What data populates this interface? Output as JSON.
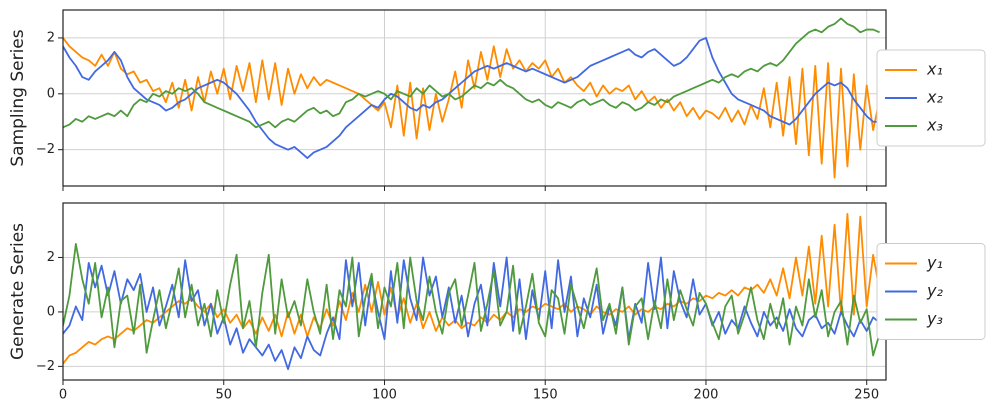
{
  "chart_data": [
    {
      "type": "line",
      "ylabel": "Sampling Series",
      "x": [
        0,
        2,
        4,
        6,
        8,
        10,
        12,
        14,
        16,
        18,
        20,
        22,
        24,
        26,
        28,
        30,
        32,
        34,
        36,
        38,
        40,
        42,
        44,
        46,
        48,
        50,
        52,
        54,
        56,
        58,
        60,
        62,
        64,
        66,
        68,
        70,
        72,
        74,
        76,
        78,
        80,
        82,
        84,
        86,
        88,
        90,
        92,
        94,
        96,
        98,
        100,
        102,
        104,
        106,
        108,
        110,
        112,
        114,
        116,
        118,
        120,
        122,
        124,
        126,
        128,
        130,
        132,
        134,
        136,
        138,
        140,
        142,
        144,
        146,
        148,
        150,
        152,
        154,
        156,
        158,
        160,
        162,
        164,
        166,
        168,
        170,
        172,
        174,
        176,
        178,
        180,
        182,
        184,
        186,
        188,
        190,
        192,
        194,
        196,
        198,
        200,
        202,
        204,
        206,
        208,
        210,
        212,
        214,
        216,
        218,
        220,
        222,
        224,
        226,
        228,
        230,
        232,
        234,
        236,
        238,
        240,
        242,
        244,
        246,
        248,
        250,
        252,
        254
      ],
      "xlim": [
        0,
        256
      ],
      "xticks": [
        0,
        50,
        100,
        150,
        200,
        250
      ],
      "xtick_labels": false,
      "ylim": [
        -3.3,
        3.0
      ],
      "yticks": [
        {
          "value": -2,
          "label": "−2"
        },
        0,
        2
      ],
      "grid": true,
      "legend": "right",
      "series": [
        {
          "name": "x₁",
          "color": "#ff8c00",
          "values": [
            2.0,
            1.7,
            1.5,
            1.3,
            1.2,
            1.0,
            1.4,
            1.0,
            1.5,
            0.9,
            0.7,
            0.8,
            0.4,
            0.5,
            0.1,
            0.2,
            -0.3,
            0.4,
            -0.5,
            0.5,
            -0.6,
            0.6,
            -0.3,
            0.8,
            0.0,
            0.9,
            -0.2,
            1.0,
            0.1,
            1.1,
            -0.3,
            1.2,
            -0.2,
            1.1,
            -0.4,
            0.9,
            0.0,
            0.7,
            0.2,
            0.6,
            0.3,
            0.5,
            0.4,
            0.3,
            0.2,
            0.1,
            0.0,
            -0.2,
            -0.4,
            -0.6,
            -0.3,
            -1.2,
            0.3,
            -1.5,
            0.4,
            -1.6,
            0.2,
            -1.3,
            0.0,
            -1.0,
            -0.2,
            0.8,
            -0.5,
            1.2,
            0.2,
            1.5,
            0.5,
            1.7,
            0.6,
            1.6,
            0.9,
            1.2,
            0.8,
            1.1,
            0.9,
            1.2,
            0.6,
            0.9,
            0.4,
            0.6,
            0.3,
            0.1,
            0.4,
            -0.1,
            0.3,
            0.0,
            0.2,
            0.1,
            0.3,
            -0.2,
            0.1,
            -0.3,
            -0.1,
            -0.5,
            -0.2,
            -0.6,
            -0.3,
            -0.8,
            -0.5,
            -0.9,
            -0.6,
            -0.7,
            -0.9,
            -0.5,
            -1.0,
            -0.6,
            -1.1,
            -0.4,
            -0.9,
            0.2,
            -1.2,
            0.4,
            -1.5,
            0.6,
            -1.8,
            0.9,
            -2.2,
            1.0,
            -2.5,
            1.1,
            -3.0,
            0.9,
            -2.6,
            0.7,
            -2.0,
            0.3,
            -1.3,
            -0.2
          ]
        },
        {
          "name": "x₂",
          "color": "#4169e1",
          "values": [
            1.7,
            1.3,
            1.0,
            0.6,
            0.5,
            0.8,
            1.0,
            1.2,
            1.5,
            1.2,
            0.6,
            0.2,
            0.0,
            -0.2,
            -0.3,
            -0.4,
            -0.6,
            -0.5,
            -0.3,
            -0.2,
            0.0,
            0.2,
            0.3,
            0.4,
            0.5,
            0.4,
            0.2,
            0.0,
            -0.3,
            -0.6,
            -1.0,
            -1.3,
            -1.6,
            -1.8,
            -1.9,
            -2.0,
            -1.9,
            -2.1,
            -2.3,
            -2.1,
            -2.0,
            -1.9,
            -1.7,
            -1.5,
            -1.2,
            -1.0,
            -0.8,
            -0.6,
            -0.4,
            -0.5,
            -0.2,
            0.0,
            -0.1,
            -0.3,
            -0.5,
            -0.6,
            -0.4,
            -0.5,
            -0.3,
            -0.2,
            0.0,
            0.2,
            0.4,
            0.6,
            0.8,
            0.9,
            1.0,
            0.9,
            1.0,
            1.1,
            1.0,
            0.9,
            0.8,
            0.9,
            0.8,
            0.7,
            0.6,
            0.5,
            0.4,
            0.5,
            0.6,
            0.8,
            1.0,
            1.1,
            1.2,
            1.3,
            1.4,
            1.5,
            1.6,
            1.4,
            1.3,
            1.5,
            1.6,
            1.4,
            1.2,
            1.0,
            1.1,
            1.3,
            1.6,
            1.9,
            2.0,
            1.3,
            0.8,
            0.4,
            0.0,
            -0.2,
            -0.3,
            -0.4,
            -0.5,
            -0.6,
            -0.8,
            -0.9,
            -1.0,
            -1.1,
            -0.9,
            -0.6,
            -0.3,
            0.0,
            0.2,
            0.4,
            0.3,
            0.4,
            0.2,
            -0.2,
            -0.5,
            -0.8,
            -1.0,
            -1.0
          ]
        },
        {
          "name": "x₃",
          "color": "#4e9a3c",
          "values": [
            -1.2,
            -1.1,
            -0.9,
            -1.0,
            -0.8,
            -0.9,
            -0.8,
            -0.7,
            -0.8,
            -0.6,
            -0.8,
            -0.4,
            -0.2,
            -0.3,
            0.0,
            -0.1,
            0.1,
            0.0,
            0.2,
            0.1,
            0.2,
            0.0,
            -0.3,
            -0.4,
            -0.5,
            -0.6,
            -0.7,
            -0.8,
            -0.9,
            -1.0,
            -1.2,
            -1.1,
            -1.0,
            -1.2,
            -1.0,
            -0.9,
            -1.0,
            -0.8,
            -0.6,
            -0.5,
            -0.7,
            -0.6,
            -0.8,
            -0.7,
            -0.3,
            -0.2,
            0.0,
            -0.1,
            0.0,
            0.1,
            0.0,
            -0.2,
            0.1,
            0.0,
            -0.1,
            0.2,
            0.0,
            0.3,
            0.1,
            -0.1,
            0.0,
            -0.2,
            -0.1,
            0.1,
            0.3,
            0.2,
            0.4,
            0.3,
            0.5,
            0.3,
            0.2,
            0.0,
            -0.2,
            -0.3,
            -0.2,
            -0.4,
            -0.5,
            -0.3,
            -0.4,
            -0.5,
            -0.3,
            -0.2,
            -0.4,
            -0.3,
            -0.2,
            -0.4,
            -0.5,
            -0.3,
            -0.4,
            -0.6,
            -0.5,
            -0.3,
            -0.4,
            -0.2,
            -0.3,
            -0.1,
            0.0,
            0.1,
            0.2,
            0.3,
            0.4,
            0.5,
            0.4,
            0.6,
            0.7,
            0.6,
            0.8,
            0.9,
            0.8,
            1.0,
            1.1,
            1.0,
            1.2,
            1.5,
            1.8,
            2.0,
            2.2,
            2.3,
            2.2,
            2.4,
            2.5,
            2.7,
            2.5,
            2.4,
            2.2,
            2.3,
            2.3,
            2.2
          ]
        }
      ]
    },
    {
      "type": "line",
      "ylabel": "Generate Series",
      "x": [
        0,
        2,
        4,
        6,
        8,
        10,
        12,
        14,
        16,
        18,
        20,
        22,
        24,
        26,
        28,
        30,
        32,
        34,
        36,
        38,
        40,
        42,
        44,
        46,
        48,
        50,
        52,
        54,
        56,
        58,
        60,
        62,
        64,
        66,
        68,
        70,
        72,
        74,
        76,
        78,
        80,
        82,
        84,
        86,
        88,
        90,
        92,
        94,
        96,
        98,
        100,
        102,
        104,
        106,
        108,
        110,
        112,
        114,
        116,
        118,
        120,
        122,
        124,
        126,
        128,
        130,
        132,
        134,
        136,
        138,
        140,
        142,
        144,
        146,
        148,
        150,
        152,
        154,
        156,
        158,
        160,
        162,
        164,
        166,
        168,
        170,
        172,
        174,
        176,
        178,
        180,
        182,
        184,
        186,
        188,
        190,
        192,
        194,
        196,
        198,
        200,
        202,
        204,
        206,
        208,
        210,
        212,
        214,
        216,
        218,
        220,
        222,
        224,
        226,
        228,
        230,
        232,
        234,
        236,
        238,
        240,
        242,
        244,
        246,
        248,
        250,
        252,
        254
      ],
      "xlim": [
        0,
        256
      ],
      "xticks": [
        0,
        50,
        100,
        150,
        200,
        250
      ],
      "xtick_labels": true,
      "ylim": [
        -2.5,
        4.0
      ],
      "yticks": [
        {
          "value": -2,
          "label": "−2"
        },
        0,
        2
      ],
      "grid": true,
      "legend": "right",
      "series": [
        {
          "name": "y₁",
          "color": "#ff8c00",
          "values": [
            -1.9,
            -1.6,
            -1.5,
            -1.3,
            -1.1,
            -1.2,
            -1.0,
            -0.9,
            -1.0,
            -0.8,
            -0.6,
            -0.7,
            -0.5,
            -0.3,
            -0.4,
            -0.2,
            0.0,
            0.2,
            0.4,
            0.3,
            0.5,
            0.2,
            0.0,
            0.3,
            -0.2,
            0.1,
            -0.4,
            -0.1,
            -0.6,
            -0.3,
            -0.8,
            -0.2,
            -0.7,
            -0.1,
            -0.9,
            0.0,
            -0.8,
            -0.1,
            -0.9,
            -0.2,
            -0.6,
            0.1,
            -0.5,
            0.4,
            -0.3,
            0.7,
            0.0,
            1.0,
            0.0,
            1.1,
            -0.1,
            0.9,
            -0.2,
            0.5,
            -0.4,
            0.3,
            -0.6,
            0.0,
            -0.7,
            -0.2,
            -0.5,
            -0.3,
            -0.6,
            -0.4,
            -0.5,
            -0.2,
            -0.4,
            -0.1,
            -0.3,
            0.0,
            -0.2,
            0.1,
            0.0,
            0.2,
            0.1,
            0.3,
            0.2,
            0.1,
            0.3,
            0.0,
            0.2,
            0.1,
            -0.1,
            0.2,
            0.0,
            -0.1,
            0.1,
            0.0,
            0.2,
            -0.1,
            0.1,
            0.0,
            0.2,
            0.1,
            0.3,
            0.2,
            0.4,
            0.3,
            0.5,
            0.4,
            0.6,
            0.5,
            0.7,
            0.6,
            0.8,
            0.6,
            0.9,
            0.8,
            1.0,
            0.7,
            1.2,
            0.6,
            1.6,
            0.5,
            2.0,
            0.6,
            2.4,
            0.3,
            2.8,
            0.2,
            3.2,
            0.0,
            3.6,
            -0.1,
            3.5,
            0.2,
            2.1,
            0.8
          ]
        },
        {
          "name": "y₂",
          "color": "#4169e1",
          "values": [
            -0.8,
            -0.5,
            0.2,
            -0.3,
            1.8,
            0.9,
            1.7,
            0.6,
            1.5,
            0.3,
            1.2,
            0.8,
            1.4,
            0.0,
            0.9,
            -0.5,
            0.2,
            1.0,
            -0.2,
            1.9,
            0.4,
            0.8,
            -0.5,
            0.3,
            -0.8,
            -0.2,
            -1.2,
            -0.6,
            -1.5,
            -1.0,
            -1.3,
            -1.6,
            -1.2,
            -1.8,
            -1.4,
            -2.1,
            -1.3,
            -1.7,
            -0.9,
            -1.4,
            -1.6,
            -0.8,
            -0.2,
            -1.0,
            1.9,
            0.2,
            1.8,
            -0.5,
            1.2,
            0.0,
            -1.0,
            1.5,
            -0.4,
            1.9,
            0.5,
            -0.3,
            2.0,
            0.6,
            1.3,
            -0.2,
            0.9,
            -0.4,
            0.6,
            -0.9,
            0.3,
            1.0,
            -0.5,
            1.8,
            0.2,
            2.0,
            -0.7,
            1.2,
            -1.0,
            0.8,
            -0.3,
            1.5,
            -0.6,
            1.9,
            0.0,
            1.3,
            -0.9,
            0.5,
            -0.2,
            1.0,
            -0.8,
            0.2,
            -0.5,
            0.9,
            -1.0,
            0.3,
            -0.4,
            1.8,
            0.1,
            2.0,
            -0.6,
            1.5,
            0.4,
            -0.2,
            1.2,
            -0.1,
            0.3,
            -0.5,
            0.0,
            -0.8,
            -0.3,
            -0.6,
            0.2,
            -0.4,
            -0.9,
            0.0,
            -0.5,
            -0.2,
            -0.7,
            0.1,
            -0.6,
            -0.9,
            -0.3,
            -0.1,
            -0.6,
            -0.4,
            -0.8,
            0.0,
            -0.5,
            -0.9,
            -0.3,
            -0.7,
            -0.2,
            -0.4
          ]
        },
        {
          "name": "y₃",
          "color": "#4e9a3c",
          "values": [
            -0.5,
            0.6,
            2.5,
            1.2,
            0.3,
            1.8,
            -0.2,
            0.9,
            -1.3,
            0.4,
            0.6,
            -0.8,
            1.0,
            -1.5,
            -0.3,
            0.8,
            -0.6,
            0.4,
            1.6,
            -0.2,
            1.0,
            -0.5,
            0.3,
            -0.9,
            0.8,
            -0.4,
            1.0,
            2.1,
            -0.6,
            0.4,
            -1.3,
            0.7,
            2.1,
            -0.8,
            1.2,
            -0.2,
            0.4,
            -0.5,
            1.2,
            0.0,
            -0.8,
            1.0,
            -1.0,
            0.8,
            0.2,
            2.0,
            -0.9,
            0.5,
            1.4,
            -0.6,
            0.9,
            0.2,
            1.8,
            -0.6,
            2.0,
            0.4,
            -0.3,
            1.3,
            0.0,
            -0.8,
            0.7,
            1.2,
            -0.5,
            0.6,
            1.8,
            -0.7,
            0.3,
            1.5,
            -0.5,
            0.0,
            1.7,
            -0.8,
            0.2,
            1.4,
            -0.4,
            -0.9,
            0.8,
            0.5,
            -0.8,
            1.0,
            0.2,
            -0.6,
            0.5,
            1.6,
            -0.3,
            0.3,
            -0.8,
            0.9,
            -1.2,
            0.2,
            0.5,
            -1.0,
            0.4,
            -0.6,
            1.2,
            -0.3,
            0.8,
            0.1,
            -0.5,
            0.7,
            0.3,
            -0.4,
            -1.0,
            0.2,
            0.6,
            -0.8,
            -0.1,
            0.9,
            -0.3,
            -1.0,
            0.3,
            -0.6,
            0.5,
            -1.2,
            0.2,
            -0.5,
            1.2,
            -0.2,
            0.8,
            -0.9,
            0.0,
            0.4,
            -1.2,
            0.6,
            -0.4,
            0.1,
            -1.6,
            -0.8
          ]
        }
      ]
    }
  ]
}
